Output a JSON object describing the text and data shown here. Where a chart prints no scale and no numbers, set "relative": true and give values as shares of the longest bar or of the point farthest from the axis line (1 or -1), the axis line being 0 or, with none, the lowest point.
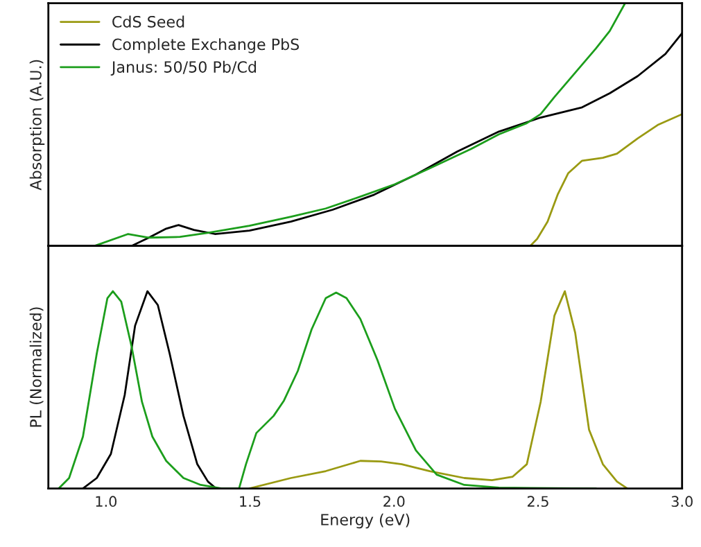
{
  "chart_data": [
    {
      "type": "line",
      "ylabel": "Absorption (A.U.)",
      "relative": true,
      "xlim": [
        0.8,
        3.0
      ],
      "tick_labels": false,
      "legend": "top left",
      "grid": false,
      "series": [
        {
          "name": "CdS Seed",
          "color": "#9a9a12",
          "x": [
            2.473,
            2.497,
            2.533,
            2.569,
            2.605,
            2.653,
            2.725,
            2.774,
            2.846,
            2.918,
            3.0
          ],
          "values": [
            0,
            0.029,
            0.1,
            0.214,
            0.3,
            0.351,
            0.363,
            0.38,
            0.443,
            0.5,
            0.543
          ]
        },
        {
          "name": "Complete Exchange PbS",
          "color": "#000000",
          "x": [
            1.089,
            1.149,
            1.209,
            1.252,
            1.305,
            1.378,
            1.498,
            1.642,
            1.787,
            1.931,
            2.076,
            2.22,
            2.364,
            2.509,
            2.653,
            2.749,
            2.846,
            2.942,
            3.0
          ],
          "values": [
            0,
            0.034,
            0.071,
            0.086,
            0.066,
            0.049,
            0.063,
            0.1,
            0.149,
            0.211,
            0.294,
            0.389,
            0.471,
            0.529,
            0.571,
            0.629,
            0.7,
            0.791,
            0.877
          ]
        },
        {
          "name": "Janus: 50/50 Pb/Cd",
          "color": "#1c9e1c",
          "x": [
            0.961,
            1.077,
            1.149,
            1.257,
            1.353,
            1.498,
            1.642,
            1.763,
            1.883,
            2.003,
            2.124,
            2.268,
            2.364,
            2.461,
            2.509,
            2.557,
            2.629,
            2.701,
            2.749,
            2.802
          ],
          "values": [
            0,
            0.049,
            0.034,
            0.037,
            0.054,
            0.083,
            0.12,
            0.154,
            0.203,
            0.254,
            0.32,
            0.4,
            0.46,
            0.506,
            0.543,
            0.614,
            0.714,
            0.814,
            0.886,
            1.0
          ]
        }
      ]
    },
    {
      "type": "line",
      "xlabel": "Energy (eV)",
      "ylabel": "PL (Normalized)",
      "relative": true,
      "xlim": [
        0.8,
        3.0
      ],
      "xticks": [
        {
          "value": 1,
          "label": "1.0"
        },
        1.5,
        {
          "value": 2,
          "label": "2.0"
        },
        2.5,
        {
          "value": 3,
          "label": "3.0"
        }
      ],
      "tick_labels": "x",
      "grid": false,
      "series": [
        {
          "color": "#9a9a12",
          "x": [
            1.498,
            1.642,
            1.763,
            1.883,
            1.955,
            2.027,
            2.124,
            2.244,
            2.34,
            2.412,
            2.461,
            2.509,
            2.557,
            2.593,
            2.629,
            2.677,
            2.725,
            2.774,
            2.81
          ],
          "values": [
            0,
            0.053,
            0.088,
            0.14,
            0.137,
            0.123,
            0.088,
            0.053,
            0.042,
            0.06,
            0.123,
            0.439,
            0.877,
            1,
            0.789,
            0.298,
            0.123,
            0.035,
            0
          ]
        },
        {
          "color": "#000000",
          "x": [
            0.92,
            0.968,
            1.017,
            1.065,
            1.101,
            1.144,
            1.18,
            1.221,
            1.269,
            1.317,
            1.354,
            1.382
          ],
          "values": [
            0,
            0.053,
            0.175,
            0.474,
            0.825,
            1,
            0.93,
            0.684,
            0.368,
            0.123,
            0.035,
            0
          ]
        },
        {
          "color": "#1c9e1c",
          "x": [
            0.836,
            0.872,
            0.92,
            0.968,
            1.005,
            1.024,
            1.053,
            1.089,
            1.125,
            1.161,
            1.209,
            1.269,
            1.329,
            1.402,
            1.462,
            1.486,
            1.522,
            1.582,
            1.618,
            1.666,
            1.714,
            1.763,
            1.799,
            1.835,
            1.883,
            1.943,
            2.003,
            2.076,
            2.148,
            2.244,
            2.364,
            2.701
          ],
          "values": [
            0,
            0.053,
            0.263,
            0.684,
            0.965,
            1,
            0.947,
            0.719,
            0.439,
            0.263,
            0.14,
            0.053,
            0.018,
            0,
            0,
            0.123,
            0.281,
            0.368,
            0.446,
            0.596,
            0.807,
            0.965,
            0.993,
            0.965,
            0.86,
            0.649,
            0.404,
            0.193,
            0.07,
            0.018,
            0.004,
            0
          ]
        }
      ]
    }
  ]
}
